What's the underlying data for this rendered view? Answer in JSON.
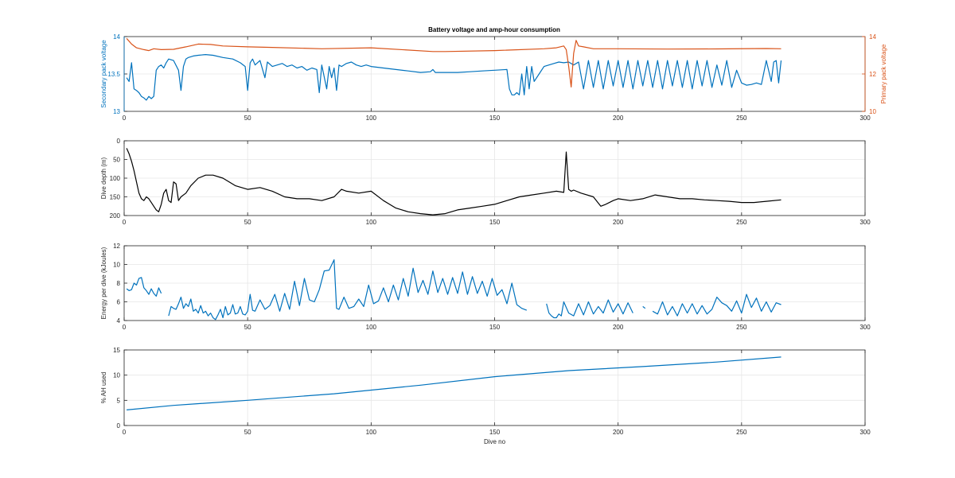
{
  "figure": {
    "title": "Battery voltage and amp-hour consumption",
    "x_label": "Dive no"
  },
  "colors": {
    "blue": "#0072BD",
    "orange": "#D95319",
    "black": "#000000",
    "text": "#262626",
    "grid": "#e6e6e6"
  },
  "chart_data": [
    {
      "type": "line",
      "title": "Battery voltage and amp-hour consumption",
      "xlim": [
        0,
        300
      ],
      "x_ticks": [
        "0",
        "50",
        "100",
        "150",
        "200",
        "250",
        "300"
      ],
      "ylabel": "Secondary pack voltage",
      "ylim": [
        13,
        14
      ],
      "y_ticks": [
        "13",
        "13.5",
        "14"
      ],
      "y2label": "Primary pack voltage",
      "y2lim": [
        10,
        14
      ],
      "y2_ticks": [
        "10",
        "12",
        "14"
      ],
      "grid": true,
      "series": [
        {
          "axis": "left",
          "color": "#0072BD",
          "x": [
            1,
            2,
            3,
            4,
            5,
            6,
            7,
            8,
            9,
            10,
            11,
            12,
            13,
            14,
            15,
            16,
            17,
            18,
            20,
            22,
            23,
            24,
            25,
            26,
            28,
            30,
            33,
            36,
            40,
            44,
            47,
            49,
            50,
            51,
            52,
            53,
            55,
            57,
            58,
            60,
            62,
            64,
            66,
            68,
            70,
            72,
            74,
            76,
            78,
            79,
            80,
            82,
            83,
            84,
            85,
            86,
            87,
            88,
            90,
            92,
            94,
            96,
            98,
            100,
            105,
            110,
            115,
            120,
            124,
            125,
            126,
            130,
            135,
            140,
            145,
            150,
            155,
            156,
            157,
            158,
            159,
            160,
            161,
            162,
            163,
            164,
            165,
            166,
            168,
            170,
            172,
            174,
            176,
            178,
            180,
            182,
            184,
            186,
            188,
            190,
            192,
            194,
            196,
            198,
            200,
            202,
            204,
            206,
            208,
            210,
            212,
            214,
            216,
            218,
            220,
            222,
            224,
            226,
            228,
            230,
            232,
            234,
            236,
            238,
            240,
            242,
            244,
            246,
            248,
            250,
            252,
            254,
            256,
            258,
            260,
            262,
            263,
            264,
            265,
            266
          ],
          "y": [
            13.45,
            13.4,
            13.65,
            13.3,
            13.28,
            13.25,
            13.2,
            13.18,
            13.15,
            13.2,
            13.17,
            13.2,
            13.55,
            13.6,
            13.62,
            13.58,
            13.65,
            13.7,
            13.68,
            13.55,
            13.28,
            13.6,
            13.7,
            13.72,
            13.74,
            13.75,
            13.76,
            13.75,
            13.72,
            13.7,
            13.65,
            13.6,
            13.28,
            13.65,
            13.7,
            13.62,
            13.68,
            13.45,
            13.66,
            13.6,
            13.62,
            13.64,
            13.6,
            13.62,
            13.58,
            13.6,
            13.55,
            13.58,
            13.56,
            13.25,
            13.62,
            13.3,
            13.6,
            13.45,
            13.58,
            13.28,
            13.62,
            13.6,
            13.64,
            13.66,
            13.62,
            13.6,
            13.62,
            13.6,
            13.58,
            13.56,
            13.54,
            13.52,
            13.53,
            13.56,
            13.52,
            13.52,
            13.52,
            13.53,
            13.54,
            13.55,
            13.56,
            13.3,
            13.22,
            13.22,
            13.25,
            13.22,
            13.5,
            13.22,
            13.6,
            13.3,
            13.6,
            13.4,
            13.5,
            13.6,
            13.62,
            13.64,
            13.66,
            13.65,
            13.66,
            13.62,
            13.66,
            13.3,
            13.68,
            13.32,
            13.68,
            13.3,
            13.68,
            13.34,
            13.68,
            13.32,
            13.68,
            13.3,
            13.68,
            13.34,
            13.68,
            13.32,
            13.68,
            13.3,
            13.68,
            13.34,
            13.68,
            13.32,
            13.68,
            13.3,
            13.68,
            13.34,
            13.68,
            13.32,
            13.62,
            13.35,
            13.68,
            13.32,
            13.55,
            13.38,
            13.35,
            13.36,
            13.38,
            13.36,
            13.68,
            13.4,
            13.66,
            13.68,
            13.38,
            13.68
          ]
        },
        {
          "axis": "right",
          "color": "#D95319",
          "x": [
            1,
            3,
            5,
            8,
            10,
            12,
            15,
            20,
            25,
            30,
            35,
            40,
            50,
            60,
            80,
            100,
            125,
            130,
            150,
            170,
            175,
            178,
            179,
            180,
            181,
            182,
            183,
            184,
            186,
            190,
            200,
            220,
            240,
            260,
            266
          ],
          "y": [
            13.9,
            13.6,
            13.4,
            13.3,
            13.25,
            13.35,
            13.3,
            13.32,
            13.45,
            13.6,
            13.58,
            13.5,
            13.45,
            13.42,
            13.35,
            13.4,
            13.2,
            13.2,
            13.25,
            13.35,
            13.4,
            13.5,
            13.3,
            12.4,
            11.3,
            13.1,
            13.8,
            13.5,
            13.45,
            13.35,
            13.35,
            13.33,
            13.34,
            13.36,
            13.35
          ]
        }
      ]
    },
    {
      "type": "line",
      "xlim": [
        0,
        300
      ],
      "x_ticks": [
        "0",
        "50",
        "100",
        "150",
        "200",
        "250",
        "300"
      ],
      "ylabel": "Dive depth (m)",
      "ylim": [
        0,
        200
      ],
      "y_reversed": true,
      "y_ticks": [
        "0",
        "50",
        "100",
        "150",
        "200"
      ],
      "grid": true,
      "series": [
        {
          "color": "#000000",
          "x": [
            1,
            2,
            3,
            4,
            5,
            6,
            7,
            8,
            9,
            10,
            11,
            12,
            13,
            14,
            15,
            16,
            17,
            18,
            19,
            20,
            21,
            22,
            23,
            25,
            27,
            30,
            33,
            36,
            40,
            45,
            50,
            55,
            60,
            65,
            70,
            75,
            80,
            85,
            88,
            90,
            95,
            100,
            105,
            110,
            115,
            120,
            125,
            130,
            135,
            140,
            145,
            150,
            155,
            160,
            165,
            170,
            175,
            178,
            179,
            180,
            181,
            182,
            185,
            190,
            193,
            195,
            198,
            200,
            205,
            210,
            215,
            220,
            225,
            230,
            235,
            240,
            245,
            250,
            255,
            260,
            266
          ],
          "y": [
            20,
            35,
            55,
            80,
            110,
            140,
            155,
            160,
            150,
            155,
            165,
            175,
            185,
            190,
            170,
            140,
            130,
            160,
            165,
            110,
            115,
            160,
            150,
            140,
            120,
            100,
            92,
            92,
            100,
            120,
            130,
            125,
            135,
            150,
            155,
            155,
            160,
            150,
            130,
            135,
            140,
            135,
            160,
            180,
            190,
            195,
            198,
            195,
            185,
            180,
            175,
            170,
            160,
            150,
            145,
            140,
            135,
            138,
            30,
            130,
            135,
            132,
            140,
            150,
            175,
            170,
            160,
            155,
            160,
            155,
            145,
            150,
            155,
            155,
            158,
            160,
            162,
            165,
            165,
            162,
            158
          ]
        }
      ]
    },
    {
      "type": "line",
      "xlim": [
        0,
        300
      ],
      "x_ticks": [
        "0",
        "50",
        "100",
        "150",
        "200",
        "250",
        "300"
      ],
      "ylabel": "Energy per dive (kJoules)",
      "ylim": [
        4,
        12
      ],
      "y_ticks": [
        "4",
        "6",
        "8",
        "10",
        "12"
      ],
      "grid": true,
      "series": [
        {
          "color": "#0072BD",
          "x": [
            1,
            2,
            3,
            4,
            5,
            6,
            7,
            8,
            9,
            10,
            11,
            12,
            13,
            14,
            15,
            null,
            18,
            19,
            20,
            21,
            22,
            23,
            24,
            25,
            26,
            27,
            28,
            29,
            30,
            31,
            32,
            33,
            34,
            35,
            36,
            37,
            38,
            39,
            40,
            41,
            42,
            43,
            44,
            45,
            46,
            47,
            48,
            49,
            50,
            51,
            52,
            53,
            55,
            57,
            59,
            61,
            63,
            65,
            67,
            69,
            71,
            73,
            75,
            77,
            79,
            81,
            83,
            85,
            86,
            87,
            89,
            91,
            93,
            95,
            97,
            99,
            101,
            103,
            105,
            107,
            109,
            111,
            113,
            115,
            117,
            119,
            121,
            123,
            125,
            127,
            129,
            131,
            133,
            135,
            137,
            139,
            141,
            143,
            145,
            147,
            149,
            151,
            153,
            155,
            157,
            159,
            161,
            163,
            null,
            171,
            172,
            173,
            174,
            175,
            176,
            177,
            178,
            180,
            182,
            184,
            186,
            188,
            190,
            192,
            194,
            196,
            198,
            200,
            202,
            204,
            206,
            null,
            210,
            211,
            null,
            214,
            216,
            218,
            220,
            222,
            224,
            226,
            228,
            230,
            232,
            234,
            236,
            238,
            240,
            242,
            244,
            246,
            248,
            250,
            252,
            254,
            256,
            258,
            260,
            262,
            264,
            266
          ],
          "y": [
            7.4,
            7.2,
            7.3,
            8.0,
            7.8,
            8.5,
            8.6,
            7.5,
            7.2,
            6.8,
            7.4,
            6.9,
            6.6,
            7.5,
            6.9,
            null,
            4.5,
            5.5,
            5.3,
            5.2,
            5.8,
            6.5,
            5.3,
            5.8,
            5.5,
            6.3,
            5.0,
            5.2,
            4.8,
            5.6,
            4.8,
            5.0,
            4.5,
            4.8,
            4.3,
            4.1,
            4.6,
            5.2,
            4.3,
            5.5,
            4.6,
            4.8,
            5.7,
            4.7,
            4.8,
            5.5,
            4.7,
            4.6,
            5.0,
            6.8,
            5.1,
            5.0,
            6.2,
            5.2,
            5.6,
            6.8,
            5.0,
            6.9,
            5.2,
            8.2,
            5.6,
            8.5,
            6.2,
            6.0,
            7.3,
            9.3,
            9.4,
            10.5,
            5.3,
            5.2,
            6.5,
            5.3,
            5.5,
            6.3,
            5.5,
            7.8,
            5.8,
            6.1,
            7.5,
            6.0,
            7.8,
            6.2,
            8.5,
            6.6,
            9.6,
            7.0,
            8.3,
            6.8,
            9.3,
            7.0,
            8.5,
            6.8,
            8.6,
            6.9,
            9.2,
            6.8,
            8.7,
            6.9,
            8.2,
            6.6,
            8.5,
            6.7,
            7.3,
            5.8,
            8.0,
            5.7,
            5.3,
            5.1,
            null,
            5.8,
            4.8,
            4.5,
            4.3,
            4.3,
            4.7,
            4.5,
            6.0,
            4.8,
            4.5,
            5.8,
            4.6,
            6.0,
            4.7,
            5.5,
            4.8,
            6.2,
            4.9,
            5.8,
            4.7,
            5.9,
            4.8,
            null,
            5.5,
            5.3,
            null,
            5.0,
            4.7,
            6.0,
            4.6,
            5.5,
            4.5,
            5.8,
            4.8,
            5.8,
            4.7,
            5.6,
            4.7,
            5.2,
            6.5,
            5.9,
            5.6,
            5.0,
            6.1,
            4.8,
            6.8,
            5.4,
            6.4,
            5.0,
            6.0,
            4.9,
            5.9,
            5.7
          ]
        }
      ]
    },
    {
      "type": "line",
      "xlim": [
        0,
        300
      ],
      "x_ticks": [
        "0",
        "50",
        "100",
        "150",
        "200",
        "250",
        "300"
      ],
      "xlabel": "Dive no",
      "ylabel": "% AH used",
      "ylim": [
        0,
        15
      ],
      "y_ticks": [
        "0",
        "5",
        "10",
        "15"
      ],
      "grid": true,
      "series": [
        {
          "color": "#0072BD",
          "x": [
            1,
            20,
            50,
            85,
            120,
            150,
            180,
            210,
            240,
            266
          ],
          "y": [
            3.1,
            4.0,
            5.0,
            6.3,
            8.0,
            9.7,
            10.9,
            11.7,
            12.6,
            13.6
          ]
        }
      ]
    }
  ]
}
